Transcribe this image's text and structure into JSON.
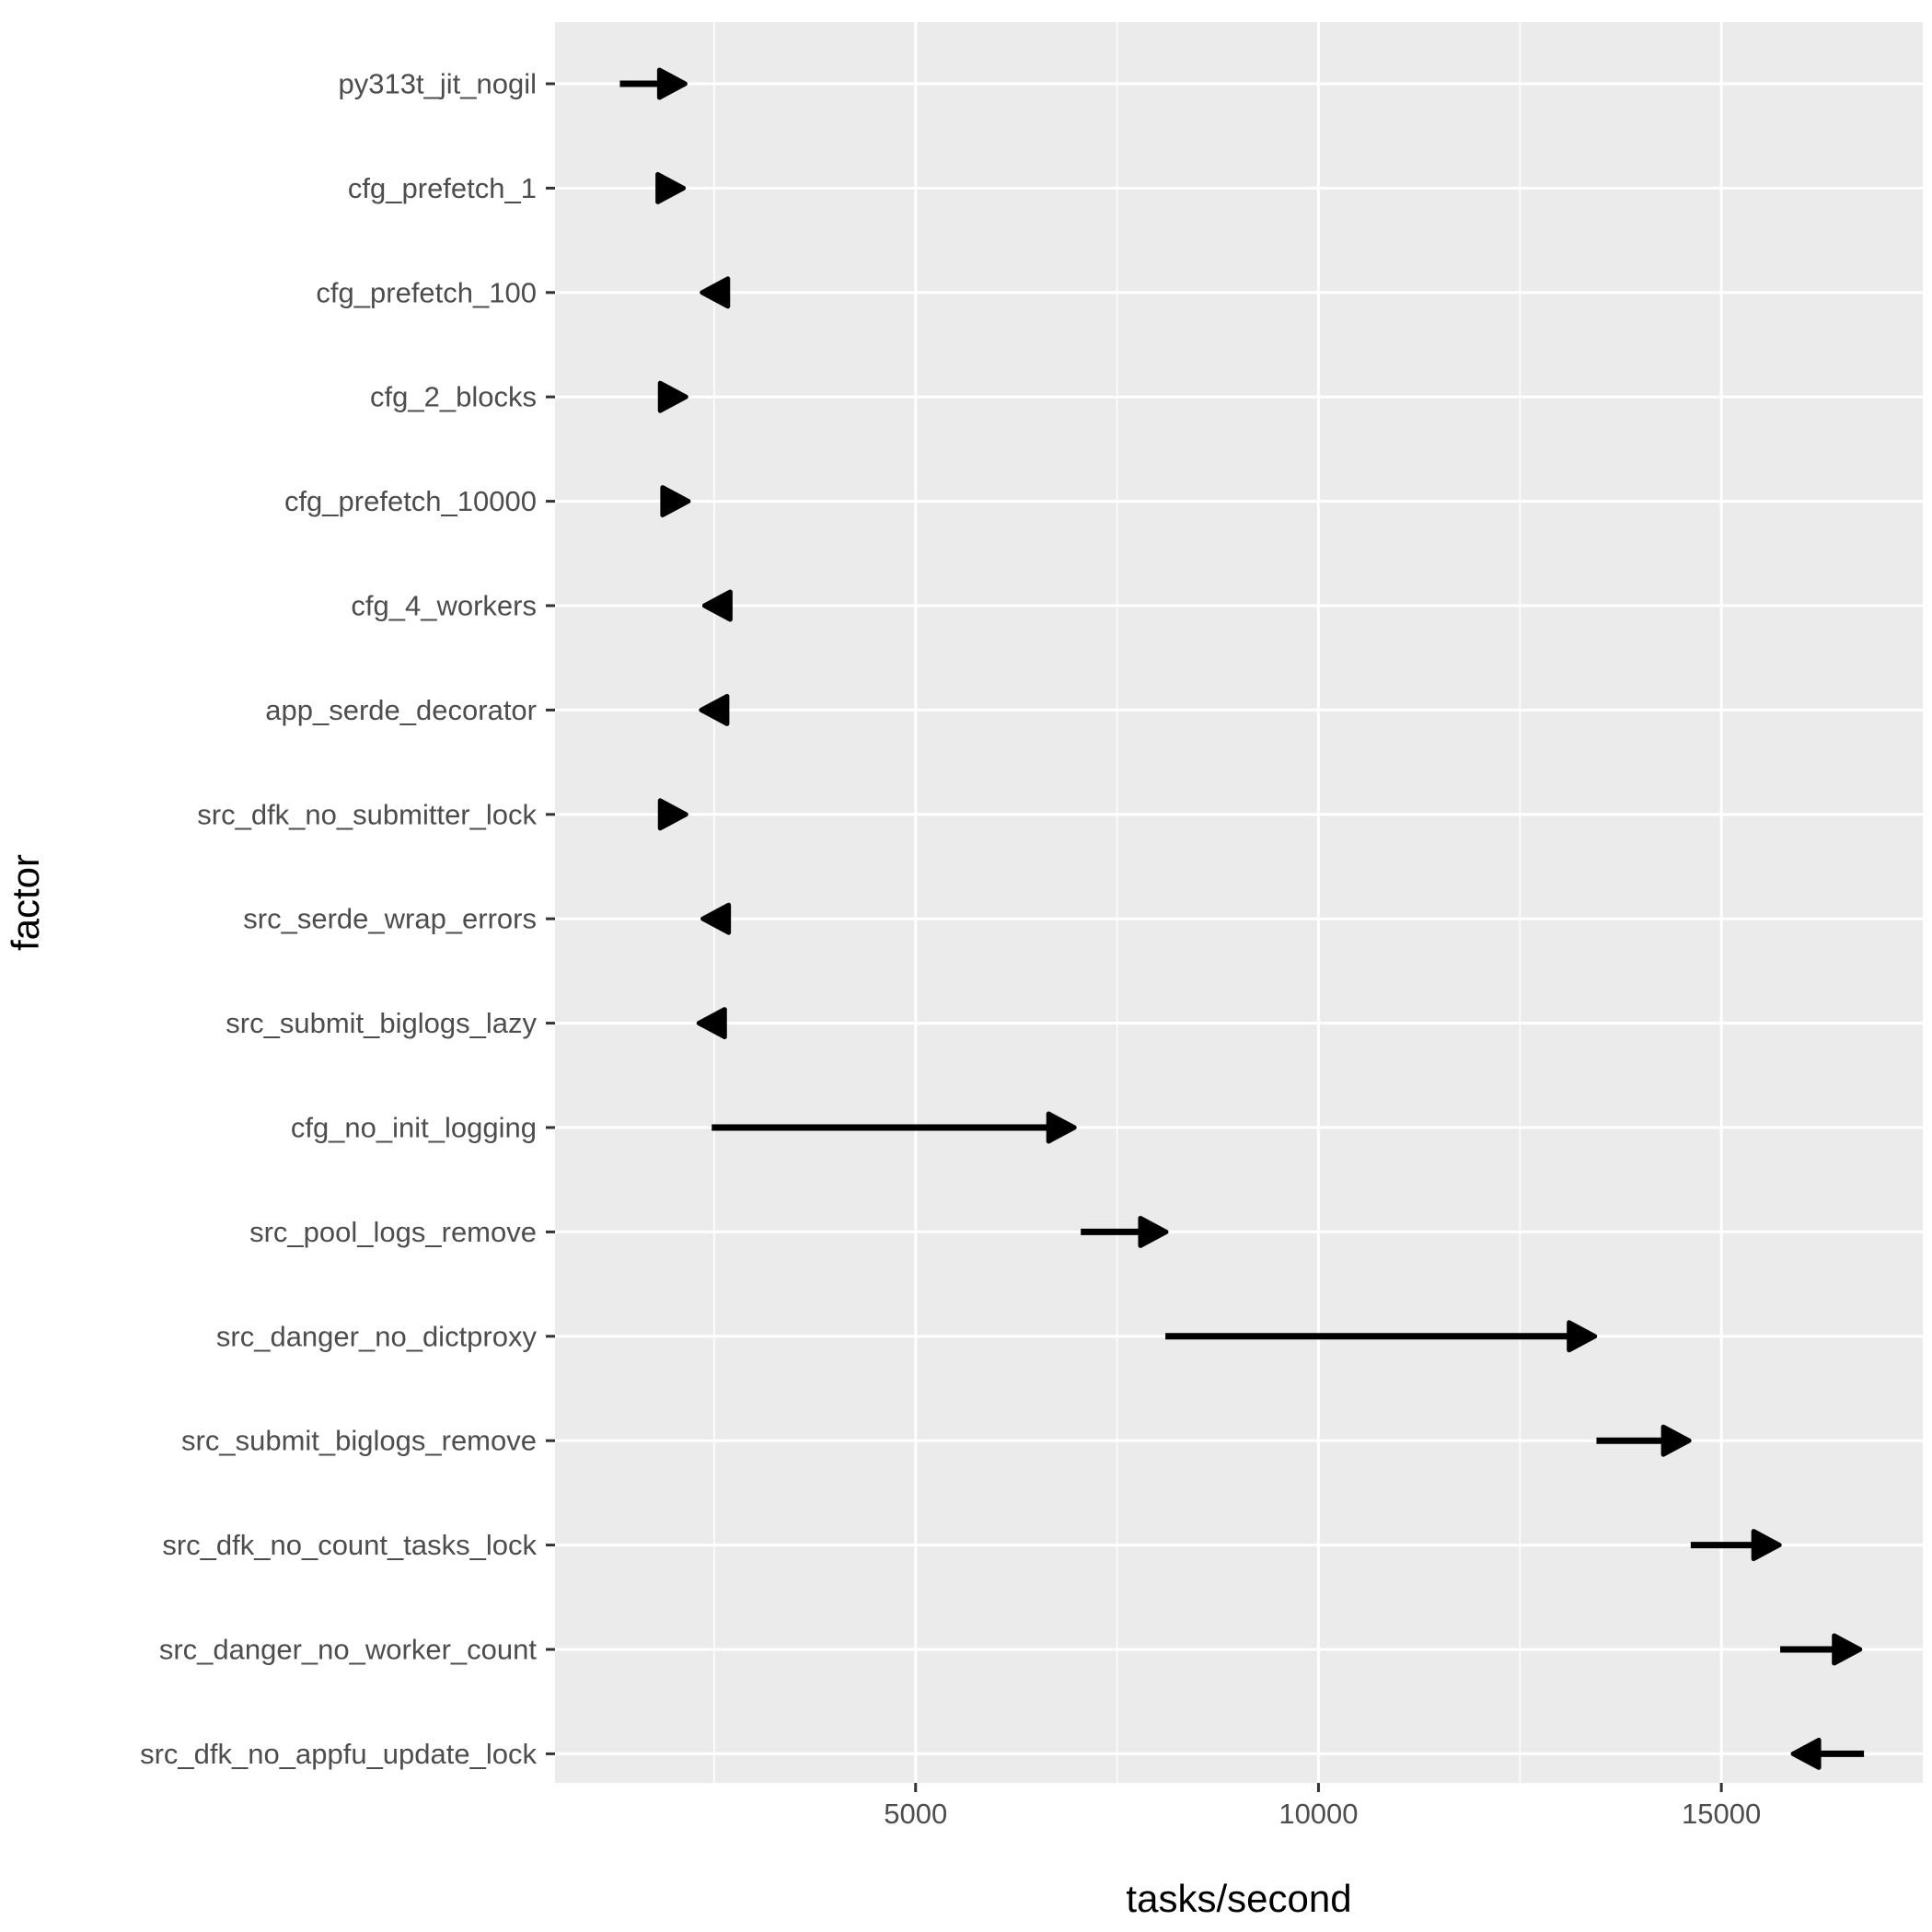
{
  "chart_data": {
    "type": "arrow-range",
    "xlabel": "tasks/second",
    "ylabel": "factor",
    "xlim": [
      525,
      17500
    ],
    "x_major_ticks": [
      5000,
      10000,
      15000
    ],
    "x_minor_ticks": [
      2500,
      7500,
      12500
    ],
    "grid": true,
    "colors": {
      "panel_background": "#ebebeb",
      "grid": "#ffffff",
      "arrow": "#000000",
      "tick_label": "#4d4d4d"
    },
    "categories": [
      "py313t_jit_nogil",
      "cfg_prefetch_1",
      "cfg_prefetch_100",
      "cfg_2_blocks",
      "cfg_prefetch_10000",
      "cfg_4_workers",
      "app_serde_decorator",
      "src_dfk_no_submitter_lock",
      "src_serde_wrap_errors",
      "src_submit_biglogs_lazy",
      "cfg_no_init_logging",
      "src_pool_logs_remove",
      "src_danger_no_dictproxy",
      "src_submit_biglogs_remove",
      "src_dfk_no_count_tasks_lock",
      "src_danger_no_worker_count",
      "src_dfk_no_appfu_update_lock"
    ],
    "from": [
      1330,
      2080,
      2420,
      2110,
      2140,
      2450,
      2390,
      2110,
      2420,
      2360,
      2470,
      7050,
      8100,
      13450,
      14620,
      15730,
      16770
    ],
    "to": [
      2140,
      2120,
      2350,
      2150,
      2180,
      2380,
      2340,
      2150,
      2360,
      2310,
      6970,
      8110,
      13430,
      14600,
      15720,
      16720,
      15890
    ]
  }
}
